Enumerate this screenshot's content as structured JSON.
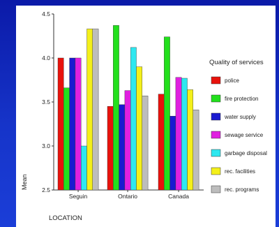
{
  "chart_data": {
    "type": "bar",
    "categories": [
      "Seguin",
      "Ontario",
      "Canada"
    ],
    "series": [
      {
        "name": "police",
        "color": "#e8120c",
        "values": [
          4.0,
          3.45,
          3.59
        ]
      },
      {
        "name": "fire protection",
        "color": "#22e01c",
        "values": [
          3.66,
          4.37,
          4.24
        ]
      },
      {
        "name": "water supply",
        "color": "#1a1ad0",
        "values": [
          4.0,
          3.47,
          3.34
        ]
      },
      {
        "name": "sewage service",
        "color": "#e020e0",
        "values": [
          4.0,
          3.63,
          3.78
        ]
      },
      {
        "name": "garbage disposal",
        "color": "#2ee8f0",
        "values": [
          3.0,
          4.12,
          3.77
        ]
      },
      {
        "name": "rec. facilities",
        "color": "#f4f01a",
        "values": [
          4.33,
          3.9,
          3.64
        ]
      },
      {
        "name": "rec. programs",
        "color": "#bdbdbd",
        "values": [
          4.33,
          3.57,
          3.41
        ]
      }
    ],
    "ylim": [
      2.5,
      4.5
    ],
    "yticks": [
      "2.5",
      "3.0",
      "3.5",
      "4.0",
      "4.5"
    ],
    "ylabel": "Mean",
    "xlabel": "LOCATION",
    "legend_title": "Quality of services",
    "legend_position": "right"
  }
}
